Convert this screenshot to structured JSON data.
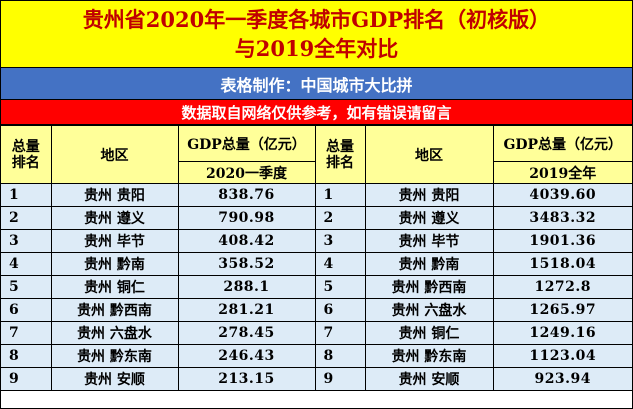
{
  "title": {
    "line1": "贵州省2020年一季度各城市GDP排名（初核版）",
    "line2": "与2019全年对比"
  },
  "maker": "表格制作：中国城市大比拼",
  "note": "数据取自网络仅供参考，如有错误请留言",
  "headers": {
    "rank_line1": "总量",
    "rank_line2": "排名",
    "region": "地区",
    "gdp": "GDP总量（亿元）",
    "period_left": "2020一季度",
    "period_right": "2019全年"
  },
  "colors": {
    "title_bg": "#ffff00",
    "title_text": "#c00000",
    "maker_bg": "#4472c4",
    "note_bg": "#ff0000",
    "header_bg": "#ffff99",
    "row_bg": "#ddebf7"
  },
  "left_rows": [
    {
      "rank": "1",
      "region": "贵州 贵阳",
      "gdp": "838.76"
    },
    {
      "rank": "2",
      "region": "贵州 遵义",
      "gdp": "790.98"
    },
    {
      "rank": "3",
      "region": "贵州 毕节",
      "gdp": "408.42"
    },
    {
      "rank": "4",
      "region": "贵州 黔南",
      "gdp": "358.52"
    },
    {
      "rank": "5",
      "region": "贵州 铜仁",
      "gdp": "288.1"
    },
    {
      "rank": "6",
      "region": "贵州 黔西南",
      "gdp": "281.21"
    },
    {
      "rank": "7",
      "region": "贵州 六盘水",
      "gdp": "278.45"
    },
    {
      "rank": "8",
      "region": "贵州 黔东南",
      "gdp": "246.43"
    },
    {
      "rank": "9",
      "region": "贵州 安顺",
      "gdp": "213.15"
    }
  ],
  "right_rows": [
    {
      "rank": "1",
      "region": "贵州 贵阳",
      "gdp": "4039.60"
    },
    {
      "rank": "2",
      "region": "贵州 遵义",
      "gdp": "3483.32"
    },
    {
      "rank": "3",
      "region": "贵州 毕节",
      "gdp": "1901.36"
    },
    {
      "rank": "4",
      "region": "贵州 黔南",
      "gdp": "1518.04"
    },
    {
      "rank": "5",
      "region": "贵州 黔西南",
      "gdp": "1272.8"
    },
    {
      "rank": "6",
      "region": "贵州 六盘水",
      "gdp": "1265.97"
    },
    {
      "rank": "7",
      "region": "贵州 铜仁",
      "gdp": "1249.16"
    },
    {
      "rank": "8",
      "region": "贵州 黔东南",
      "gdp": "1123.04"
    },
    {
      "rank": "9",
      "region": "贵州 安顺",
      "gdp": "923.94"
    }
  ]
}
